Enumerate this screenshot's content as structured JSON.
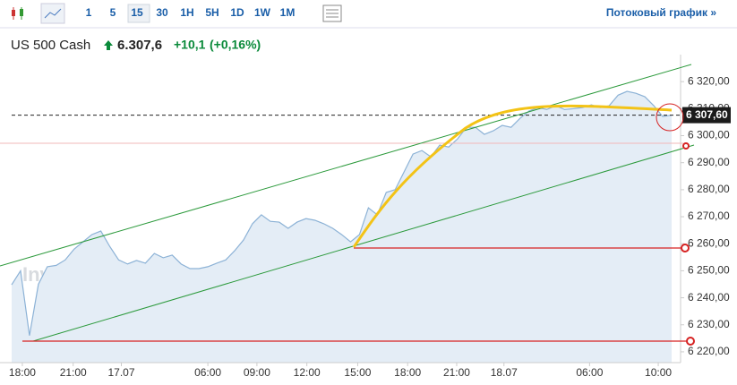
{
  "toolbar": {
    "intervals": [
      "1",
      "5",
      "15",
      "30",
      "1H",
      "5H",
      "1D",
      "1W",
      "1M"
    ],
    "active": "15",
    "stream_link": "Потоковый график »"
  },
  "header": {
    "name": "US 500 Cash",
    "price": "6.307,6",
    "change": "+10,1",
    "change_percent": "(+0,16%)"
  },
  "chart_data": {
    "type": "area",
    "watermark": "Investing.com",
    "x": [
      0,
      1,
      2,
      3,
      4,
      5,
      6,
      7,
      8,
      9,
      10,
      11,
      12,
      13,
      14,
      15,
      16,
      17,
      18,
      19,
      20,
      21,
      22,
      23,
      24,
      25,
      26,
      27,
      28,
      29,
      30,
      31,
      32,
      33,
      34,
      35,
      36,
      37,
      38,
      39,
      40,
      41,
      42,
      43,
      44,
      45,
      46,
      47,
      48,
      49,
      50,
      51,
      52,
      53,
      54,
      55,
      56,
      57,
      58,
      59,
      60,
      61,
      62,
      63,
      64,
      65,
      66,
      67,
      68,
      69,
      70,
      71,
      72,
      73,
      74
    ],
    "series": [
      {
        "name": "US 500 Cash",
        "color": "#8cb2d6",
        "fill": "#e4edf6",
        "values": [
          6244.8,
          6250,
          6226,
          6245,
          6251.5,
          6252,
          6254,
          6258,
          6260.7,
          6263.4,
          6264.7,
          6259,
          6254,
          6252.5,
          6253.8,
          6252.8,
          6256.4,
          6254.8,
          6255.8,
          6252.5,
          6250.8,
          6250.8,
          6251.5,
          6252.8,
          6254,
          6257.4,
          6261.4,
          6267.4,
          6270.7,
          6268.3,
          6268,
          6265.7,
          6268,
          6269.3,
          6268.7,
          6267.4,
          6265.7,
          6263.4,
          6260.7,
          6263.4,
          6273.3,
          6270.7,
          6279,
          6280,
          6286.6,
          6293.2,
          6294.5,
          6292.2,
          6296.5,
          6295.8,
          6298.8,
          6303.1,
          6303.1,
          6300.5,
          6301.8,
          6303.8,
          6303.1,
          6306.4,
          6309.1,
          6310.4,
          6309.7,
          6311.1,
          6309.7,
          6310,
          6310.4,
          6311.4,
          6310.4,
          6311.1,
          6315,
          6316.4,
          6315.7,
          6314.4,
          6311.1,
          6307.1,
          6307.6
        ]
      }
    ],
    "xlim": [
      0,
      74
    ],
    "xticks": [
      {
        "value": 1.2,
        "label": "18:00"
      },
      {
        "value": 6.9,
        "label": "21:00"
      },
      {
        "value": 12.3,
        "label": "17.07"
      },
      {
        "value": 22,
        "label": "06:00"
      },
      {
        "value": 27.5,
        "label": "09:00"
      },
      {
        "value": 33.1,
        "label": "12:00"
      },
      {
        "value": 38.8,
        "label": "15:00"
      },
      {
        "value": 44.4,
        "label": "18:00"
      },
      {
        "value": 49.9,
        "label": "21:00"
      },
      {
        "value": 55.2,
        "label": "18.07"
      },
      {
        "value": 64.8,
        "label": "06:00"
      },
      {
        "value": 72.5,
        "label": "10:00"
      }
    ],
    "ylim": [
      6216,
      6330
    ],
    "yticks": [
      {
        "value": 6220,
        "label": "6 220,00"
      },
      {
        "value": 6230,
        "label": "6 230,00"
      },
      {
        "value": 6240,
        "label": "6 240,00"
      },
      {
        "value": 6250,
        "label": "6 250,00"
      },
      {
        "value": 6260,
        "label": "6 260,00"
      },
      {
        "value": 6270,
        "label": "6 270,00"
      },
      {
        "value": 6280,
        "label": "6 280,00"
      },
      {
        "value": 6290,
        "label": "6 290,00"
      },
      {
        "value": 6300,
        "label": "6 300,00"
      },
      {
        "value": 6310,
        "label": "6 310,00"
      },
      {
        "value": 6320,
        "label": "6 320,00"
      }
    ],
    "current": {
      "value": 6307.6,
      "label": "6 307,60"
    },
    "grid": false
  }
}
